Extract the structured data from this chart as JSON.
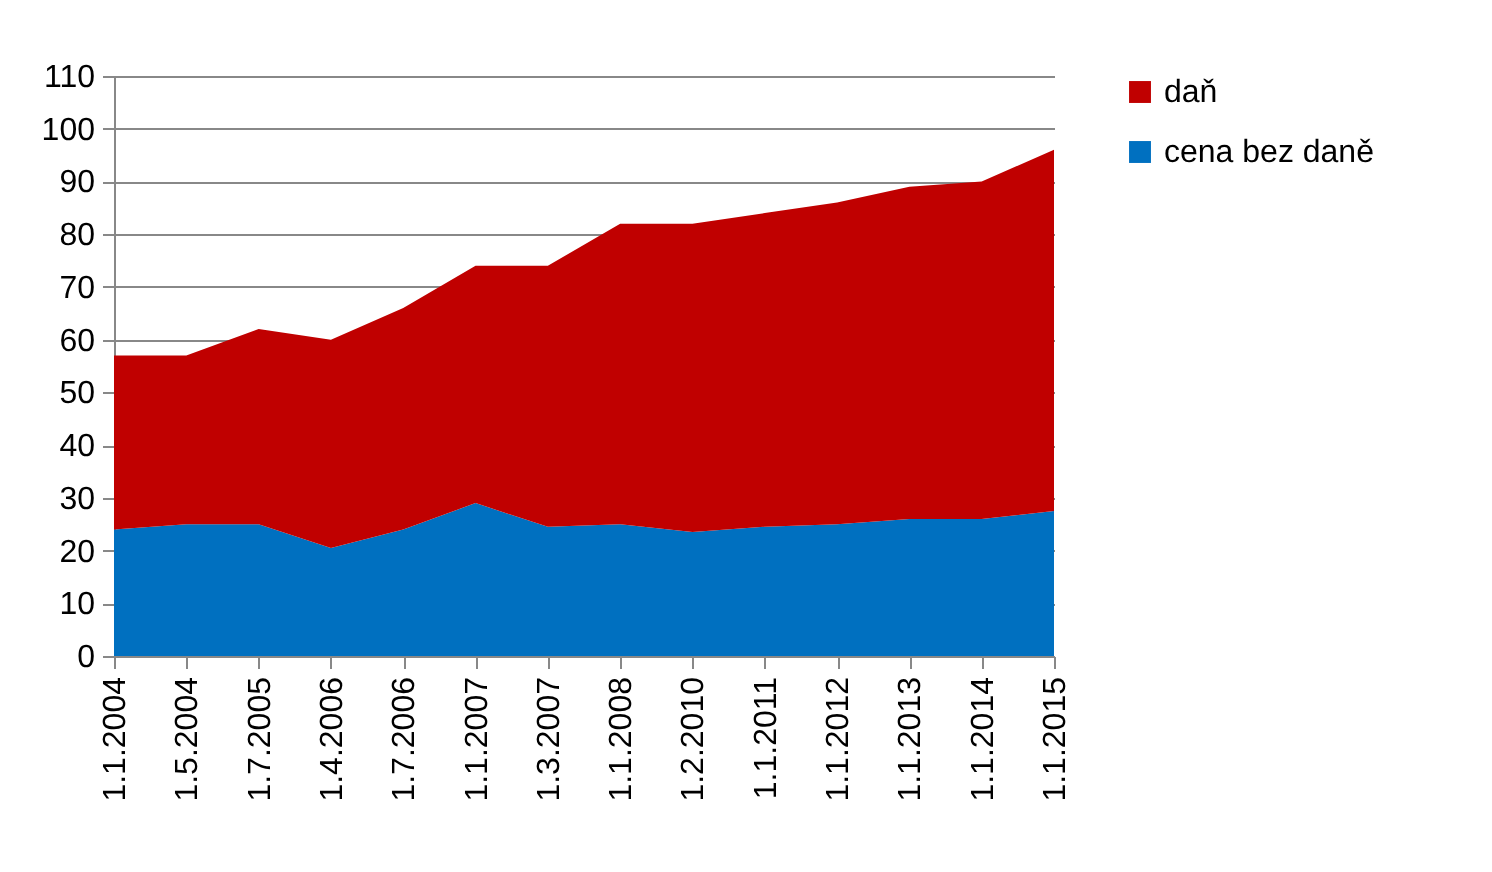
{
  "chart_data": {
    "type": "area",
    "stacked": true,
    "categories": [
      "1.1.2004",
      "1.5.2004",
      "1.7.2005",
      "1.4.2006",
      "1.7.2006",
      "1.1.2007",
      "1.3.2007",
      "1.1.2008",
      "1.2.2010",
      "1.1.2011",
      "1.1.2012",
      "1.1.2013",
      "1.1.2014",
      "1.1.2015"
    ],
    "series": [
      {
        "name": "cena bez daně",
        "color": "#0070c0",
        "values": [
          24,
          25,
          25,
          20.5,
          24,
          29,
          24.5,
          25,
          23.5,
          24.5,
          25,
          26,
          26,
          27.5
        ]
      },
      {
        "name": "daň",
        "color": "#c00000",
        "values": [
          33,
          32,
          37,
          39.5,
          42,
          45,
          49.5,
          57,
          58.5,
          59.5,
          61,
          63,
          64,
          68.5
        ]
      }
    ],
    "ylim": [
      0,
      110
    ],
    "yticks": [
      0,
      10,
      20,
      30,
      40,
      50,
      60,
      70,
      80,
      90,
      100,
      110
    ],
    "grid": "y",
    "legend": "right"
  }
}
